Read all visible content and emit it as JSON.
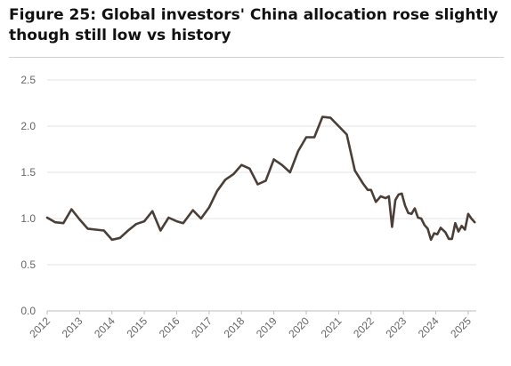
{
  "figure": {
    "title_line1": "Figure 25: Global investors' China allocation rose slightly",
    "title_line2": "though still low vs history"
  },
  "chart_data": {
    "type": "line",
    "title": "Figure 25: Global investors' China allocation rose slightly though still low vs history",
    "xlabel": "",
    "ylabel": "",
    "ylim": [
      0,
      2.5
    ],
    "yticks": [
      "0.0",
      "0.5",
      "1.0",
      "1.5",
      "2.0",
      "2.5"
    ],
    "xticks": [
      "2012",
      "2013",
      "2014",
      "2015",
      "2016",
      "2017",
      "2018",
      "2019",
      "2020",
      "2021",
      "2022",
      "2023",
      "2024",
      "2025"
    ],
    "grid": "horizontal",
    "legend": "none",
    "line_color": "#4a3e37",
    "series": [
      {
        "name": "",
        "x": [
          2012.0,
          2012.25,
          2012.5,
          2012.75,
          2013.0,
          2013.25,
          2013.5,
          2013.75,
          2014.0,
          2014.25,
          2014.5,
          2014.75,
          2015.0,
          2015.25,
          2015.5,
          2015.75,
          2016.0,
          2016.2,
          2016.5,
          2016.75,
          2017.0,
          2017.25,
          2017.5,
          2017.75,
          2018.0,
          2018.25,
          2018.5,
          2018.75,
          2019.0,
          2019.25,
          2019.5,
          2019.75,
          2020.0,
          2020.25,
          2020.5,
          2020.75,
          2021.0,
          2021.25,
          2021.5,
          2021.75,
          2021.9,
          2022.0,
          2022.15,
          2022.3,
          2022.45,
          2022.55,
          2022.65,
          2022.75,
          2022.85,
          2022.95,
          2023.05,
          2023.15,
          2023.25,
          2023.35,
          2023.45,
          2023.55,
          2023.65,
          2023.75,
          2023.85,
          2023.95,
          2024.05,
          2024.15,
          2024.3,
          2024.4,
          2024.5,
          2024.6,
          2024.7,
          2024.8,
          2024.9,
          2025.0,
          2025.1,
          2025.2
        ],
        "y": [
          1.01,
          0.96,
          0.95,
          1.1,
          0.99,
          0.89,
          0.88,
          0.87,
          0.77,
          0.79,
          0.87,
          0.94,
          0.97,
          1.08,
          0.87,
          1.01,
          0.97,
          0.95,
          1.09,
          1.0,
          1.12,
          1.3,
          1.42,
          1.48,
          1.58,
          1.54,
          1.37,
          1.41,
          1.64,
          1.58,
          1.5,
          1.73,
          1.88,
          1.88,
          2.1,
          2.09,
          2.0,
          1.91,
          1.52,
          1.38,
          1.31,
          1.31,
          1.18,
          1.24,
          1.22,
          1.24,
          0.91,
          1.2,
          1.26,
          1.27,
          1.14,
          1.06,
          1.05,
          1.11,
          1.01,
          1.0,
          0.93,
          0.89,
          0.77,
          0.84,
          0.83,
          0.9,
          0.85,
          0.78,
          0.78,
          0.95,
          0.86,
          0.92,
          0.88,
          1.05,
          1.0,
          0.96
        ]
      }
    ]
  }
}
